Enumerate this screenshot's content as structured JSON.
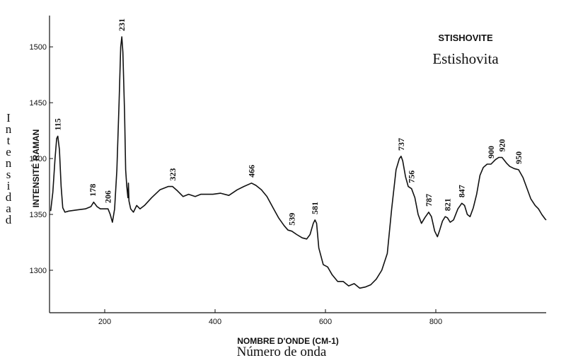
{
  "chart_data": {
    "type": "line",
    "title": "STISHOVITE",
    "subtitle": "Estishovita",
    "xlabel": "NOMBRE D'ONDE (CM-1)",
    "xlabel_alt": "Número de onda",
    "ylabel": "INTENSITÉ RAMAN",
    "ylabel_alt": "Intensidad",
    "xlim": [
      100,
      1000
    ],
    "ylim": [
      1262,
      1528
    ],
    "x_ticks": [
      200,
      400,
      600,
      800
    ],
    "y_ticks": [
      1300,
      1350,
      1400,
      1450,
      1500
    ],
    "grid": false,
    "series": [
      {
        "x": [
          102,
          106,
          110,
          113,
          115,
          118,
          121,
          124,
          128,
          135,
          150,
          165,
          175,
          180,
          186,
          192,
          200,
          206,
          210,
          214,
          218,
          222,
          226,
          229,
          231,
          233,
          236,
          238,
          240,
          242,
          243,
          244,
          247,
          252,
          258,
          264,
          272,
          285,
          300,
          315,
          323,
          332,
          342,
          352,
          364,
          374,
          386,
          396,
          410,
          425,
          440,
          452,
          466,
          474,
          484,
          494,
          505,
          515,
          525,
          532,
          539,
          548,
          558,
          566,
          572,
          578,
          581,
          584,
          588,
          596,
          604,
          612,
          622,
          632,
          642,
          652,
          662,
          672,
          682,
          692,
          702,
          712,
          720,
          728,
          734,
          737,
          740,
          745,
          750,
          756,
          762,
          768,
          774,
          780,
          787,
          792,
          798,
          803,
          807,
          812,
          817,
          821,
          826,
          832,
          840,
          847,
          852,
          857,
          862,
          868,
          874,
          880,
          886,
          893,
          900,
          908,
          914,
          920,
          928,
          934,
          942,
          950,
          958,
          964,
          972,
          980,
          986,
          992,
          998,
          1000
        ],
        "y": [
          1353,
          1370,
          1400,
          1418,
          1420,
          1408,
          1375,
          1356,
          1352,
          1353,
          1354,
          1355,
          1357,
          1361,
          1357,
          1355,
          1355,
          1355,
          1350,
          1343,
          1355,
          1390,
          1450,
          1500,
          1509,
          1495,
          1440,
          1390,
          1375,
          1365,
          1378,
          1362,
          1355,
          1352,
          1358,
          1355,
          1358,
          1365,
          1372,
          1375,
          1375,
          1371,
          1366,
          1368,
          1366,
          1368,
          1368,
          1368,
          1369,
          1367,
          1372,
          1375,
          1378,
          1376,
          1372,
          1366,
          1356,
          1347,
          1340,
          1336,
          1335,
          1332,
          1329,
          1328,
          1332,
          1342,
          1345,
          1342,
          1320,
          1305,
          1303,
          1296,
          1290,
          1290,
          1286,
          1288,
          1284,
          1285,
          1287,
          1292,
          1300,
          1315,
          1355,
          1390,
          1400,
          1402,
          1398,
          1384,
          1375,
          1373,
          1365,
          1350,
          1342,
          1347,
          1352,
          1348,
          1335,
          1330,
          1336,
          1344,
          1348,
          1347,
          1343,
          1345,
          1355,
          1360,
          1358,
          1350,
          1348,
          1356,
          1368,
          1385,
          1392,
          1395,
          1395,
          1399,
          1401,
          1401,
          1396,
          1393,
          1391,
          1390,
          1383,
          1375,
          1364,
          1358,
          1355,
          1350,
          1346,
          1345
        ]
      }
    ],
    "peak_labels": [
      {
        "x": 115,
        "y": 1420,
        "label": "115"
      },
      {
        "x": 178,
        "y": 1361,
        "label": "178"
      },
      {
        "x": 206,
        "y": 1355,
        "label": "206"
      },
      {
        "x": 231,
        "y": 1509,
        "label": "231"
      },
      {
        "x": 323,
        "y": 1375,
        "label": "323"
      },
      {
        "x": 466,
        "y": 1378,
        "label": "466"
      },
      {
        "x": 539,
        "y": 1335,
        "label": "539"
      },
      {
        "x": 581,
        "y": 1345,
        "label": "581"
      },
      {
        "x": 737,
        "y": 1402,
        "label": "737"
      },
      {
        "x": 756,
        "y": 1373,
        "label": "756"
      },
      {
        "x": 787,
        "y": 1352,
        "label": "787"
      },
      {
        "x": 821,
        "y": 1348,
        "label": "821"
      },
      {
        "x": 847,
        "y": 1360,
        "label": "847"
      },
      {
        "x": 900,
        "y": 1395,
        "label": "900"
      },
      {
        "x": 920,
        "y": 1401,
        "label": "920"
      },
      {
        "x": 950,
        "y": 1390,
        "label": "950"
      }
    ]
  }
}
